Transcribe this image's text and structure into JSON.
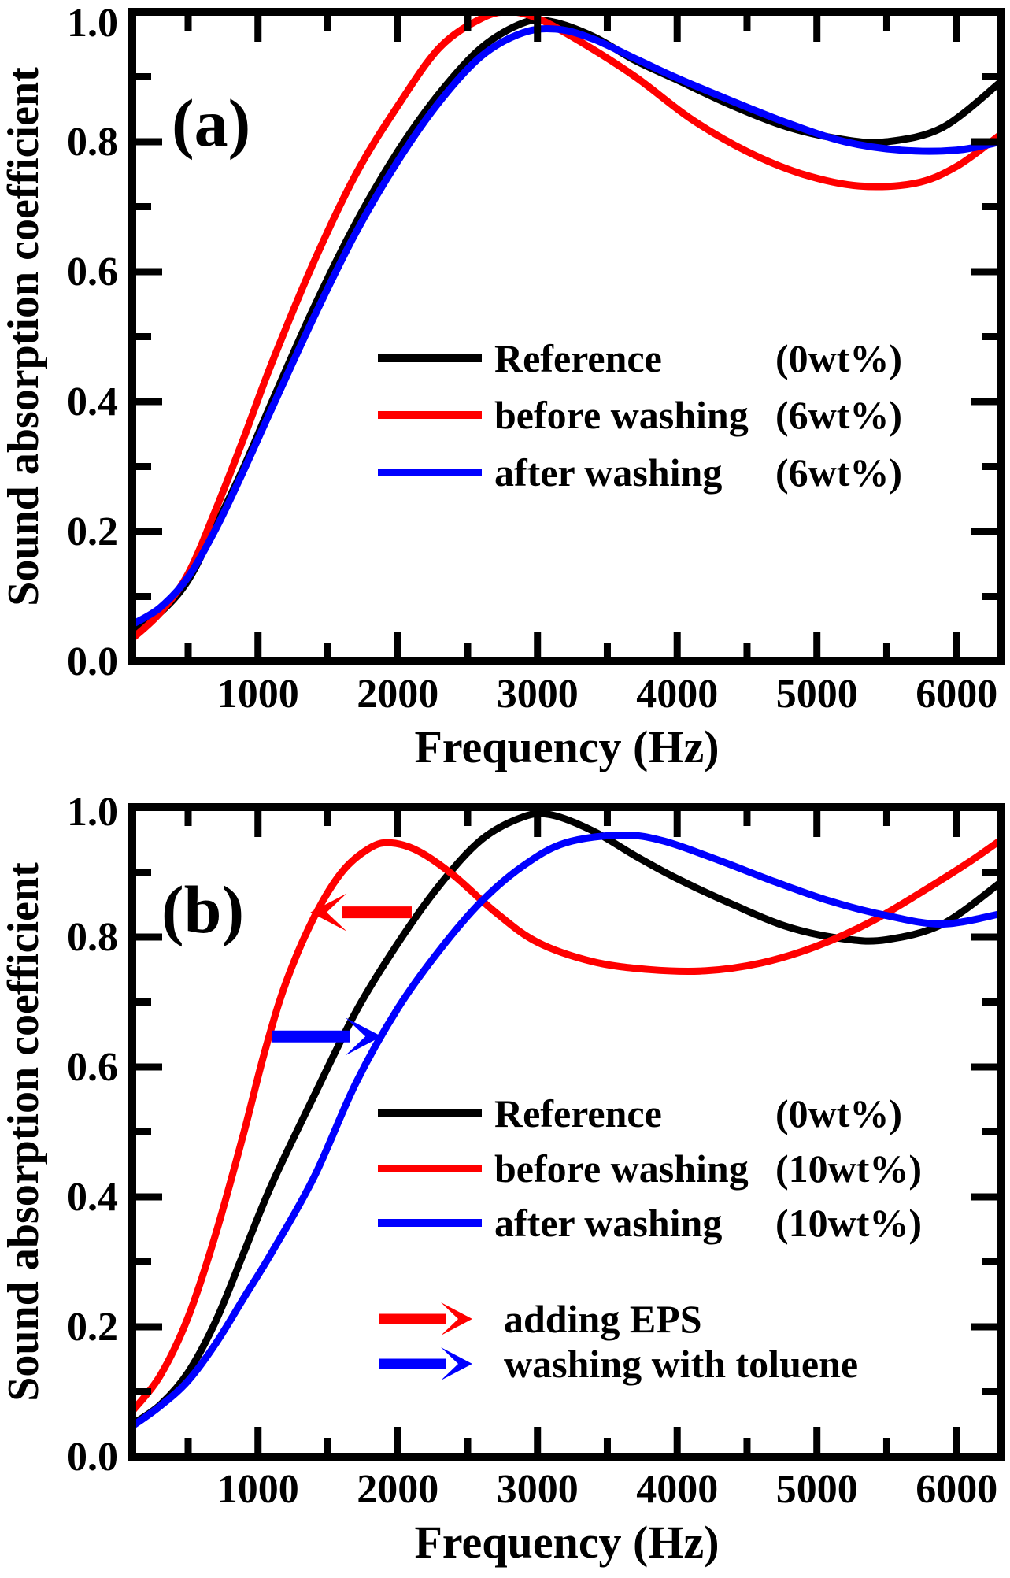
{
  "figure": {
    "background": "#ffffff",
    "x_axis_title": "Frequency (Hz)",
    "y_axis_title": "Sound absorption coefficient"
  },
  "chart_data": [
    {
      "type": "line",
      "panel_label": "(a)",
      "xlabel": "Frequency (Hz)",
      "ylabel": "Sound absorption coefficient",
      "xlim": [
        100,
        6320
      ],
      "ylim": [
        0.0,
        1.0
      ],
      "x_ticks": [
        1000,
        2000,
        3000,
        4000,
        5000,
        6000
      ],
      "x_minor_ticks": [
        500,
        1500,
        2500,
        3500,
        4500,
        5500
      ],
      "y_ticks": [
        {
          "v": 0.0,
          "label": "0.0"
        },
        {
          "v": 0.2,
          "label": "0.2"
        },
        {
          "v": 0.4,
          "label": "0.4"
        },
        {
          "v": 0.6,
          "label": "0.6"
        },
        {
          "v": 0.8,
          "label": "0.8"
        },
        {
          "v": 1.0,
          "label": "1.0"
        }
      ],
      "y_minor_ticks": [
        0.1,
        0.3,
        0.5,
        0.7,
        0.9
      ],
      "grid": false,
      "legend_position": "center-right",
      "series": [
        {
          "name": "Reference",
          "amount": "(0wt%)",
          "color": "#000000",
          "points": [
            [
              100,
              0.045
            ],
            [
              300,
              0.075
            ],
            [
              500,
              0.125
            ],
            [
              700,
              0.21
            ],
            [
              900,
              0.3
            ],
            [
              1100,
              0.4
            ],
            [
              1400,
              0.545
            ],
            [
              1700,
              0.675
            ],
            [
              2000,
              0.785
            ],
            [
              2300,
              0.875
            ],
            [
              2600,
              0.945
            ],
            [
              2900,
              0.983
            ],
            [
              3100,
              0.985
            ],
            [
              3400,
              0.962
            ],
            [
              3700,
              0.925
            ],
            [
              4000,
              0.895
            ],
            [
              4400,
              0.855
            ],
            [
              4800,
              0.822
            ],
            [
              5200,
              0.803
            ],
            [
              5500,
              0.8
            ],
            [
              5900,
              0.822
            ],
            [
              6320,
              0.893
            ]
          ]
        },
        {
          "name": "before washing",
          "amount": "(6wt%)",
          "color": "#ff0000",
          "points": [
            [
              100,
              0.035
            ],
            [
              300,
              0.075
            ],
            [
              500,
              0.135
            ],
            [
              700,
              0.235
            ],
            [
              900,
              0.345
            ],
            [
              1100,
              0.46
            ],
            [
              1400,
              0.615
            ],
            [
              1700,
              0.75
            ],
            [
              2000,
              0.855
            ],
            [
              2300,
              0.945
            ],
            [
              2600,
              0.99
            ],
            [
              2800,
              1.0
            ],
            [
              3000,
              0.99
            ],
            [
              3300,
              0.955
            ],
            [
              3700,
              0.9
            ],
            [
              4100,
              0.835
            ],
            [
              4500,
              0.785
            ],
            [
              4900,
              0.75
            ],
            [
              5300,
              0.732
            ],
            [
              5700,
              0.736
            ],
            [
              6000,
              0.762
            ],
            [
              6320,
              0.812
            ]
          ]
        },
        {
          "name": "after washing",
          "amount": "(6wt%)",
          "color": "#0000ff",
          "points": [
            [
              100,
              0.057
            ],
            [
              300,
              0.083
            ],
            [
              500,
              0.13
            ],
            [
              700,
              0.205
            ],
            [
              900,
              0.295
            ],
            [
              1100,
              0.39
            ],
            [
              1400,
              0.53
            ],
            [
              1700,
              0.66
            ],
            [
              2000,
              0.77
            ],
            [
              2300,
              0.862
            ],
            [
              2600,
              0.932
            ],
            [
              2900,
              0.968
            ],
            [
              3150,
              0.973
            ],
            [
              3400,
              0.958
            ],
            [
              3700,
              0.928
            ],
            [
              4000,
              0.898
            ],
            [
              4400,
              0.862
            ],
            [
              4800,
              0.828
            ],
            [
              5200,
              0.8
            ],
            [
              5600,
              0.787
            ],
            [
              6000,
              0.787
            ],
            [
              6320,
              0.8
            ]
          ]
        }
      ],
      "annotations": []
    },
    {
      "type": "line",
      "panel_label": "(b)",
      "xlabel": "Frequency (Hz)",
      "ylabel": "Sound absorption coefficient",
      "xlim": [
        100,
        6320
      ],
      "ylim": [
        0.0,
        1.0
      ],
      "x_ticks": [
        1000,
        2000,
        3000,
        4000,
        5000,
        6000
      ],
      "x_minor_ticks": [
        500,
        1500,
        2500,
        3500,
        4500,
        5500
      ],
      "y_ticks": [
        {
          "v": 0.0,
          "label": "0.0"
        },
        {
          "v": 0.2,
          "label": "0.2"
        },
        {
          "v": 0.4,
          "label": "0.4"
        },
        {
          "v": 0.6,
          "label": "0.6"
        },
        {
          "v": 0.8,
          "label": "0.8"
        },
        {
          "v": 1.0,
          "label": "1.0"
        }
      ],
      "y_minor_ticks": [
        0.1,
        0.3,
        0.5,
        0.7,
        0.9
      ],
      "grid": false,
      "legend_position": "center-right",
      "series": [
        {
          "name": "Reference",
          "amount": "(0wt%)",
          "color": "#000000",
          "points": [
            [
              100,
              0.05
            ],
            [
              300,
              0.08
            ],
            [
              500,
              0.13
            ],
            [
              700,
              0.21
            ],
            [
              900,
              0.315
            ],
            [
              1100,
              0.42
            ],
            [
              1400,
              0.555
            ],
            [
              1700,
              0.685
            ],
            [
              2000,
              0.79
            ],
            [
              2300,
              0.88
            ],
            [
              2600,
              0.95
            ],
            [
              2900,
              0.985
            ],
            [
              3100,
              0.988
            ],
            [
              3400,
              0.963
            ],
            [
              3700,
              0.925
            ],
            [
              4000,
              0.89
            ],
            [
              4400,
              0.85
            ],
            [
              4800,
              0.815
            ],
            [
              5200,
              0.797
            ],
            [
              5500,
              0.796
            ],
            [
              5900,
              0.82
            ],
            [
              6320,
              0.885
            ]
          ]
        },
        {
          "name": "before washing",
          "amount": "(10wt%)",
          "color": "#ff0000",
          "points": [
            [
              100,
              0.07
            ],
            [
              300,
              0.125
            ],
            [
              500,
              0.215
            ],
            [
              700,
              0.345
            ],
            [
              900,
              0.5
            ],
            [
              1050,
              0.625
            ],
            [
              1200,
              0.73
            ],
            [
              1400,
              0.83
            ],
            [
              1600,
              0.9
            ],
            [
              1800,
              0.937
            ],
            [
              1950,
              0.945
            ],
            [
              2150,
              0.932
            ],
            [
              2400,
              0.895
            ],
            [
              2700,
              0.838
            ],
            [
              3000,
              0.792
            ],
            [
              3400,
              0.762
            ],
            [
              3800,
              0.75
            ],
            [
              4200,
              0.748
            ],
            [
              4600,
              0.76
            ],
            [
              5000,
              0.786
            ],
            [
              5400,
              0.825
            ],
            [
              5800,
              0.876
            ],
            [
              6100,
              0.917
            ],
            [
              6320,
              0.95
            ]
          ]
        },
        {
          "name": "after washing",
          "amount": "(10wt%)",
          "color": "#0000ff",
          "points": [
            [
              100,
              0.047
            ],
            [
              300,
              0.078
            ],
            [
              500,
              0.117
            ],
            [
              700,
              0.175
            ],
            [
              900,
              0.245
            ],
            [
              1100,
              0.315
            ],
            [
              1400,
              0.43
            ],
            [
              1700,
              0.575
            ],
            [
              2000,
              0.69
            ],
            [
              2300,
              0.78
            ],
            [
              2600,
              0.855
            ],
            [
              2900,
              0.91
            ],
            [
              3200,
              0.945
            ],
            [
              3600,
              0.957
            ],
            [
              3900,
              0.948
            ],
            [
              4300,
              0.918
            ],
            [
              4700,
              0.885
            ],
            [
              5100,
              0.855
            ],
            [
              5500,
              0.833
            ],
            [
              5900,
              0.82
            ],
            [
              6320,
              0.836
            ]
          ]
        }
      ],
      "annotations": [
        {
          "kind": "arrow",
          "label": "adding EPS",
          "color": "#ff0000",
          "y": 0.838,
          "x_from": 2100,
          "x_to": 1420,
          "direction": "left"
        },
        {
          "kind": "arrow",
          "label": "washing with toluene",
          "color": "#0000ff",
          "y": 0.647,
          "x_from": 1100,
          "x_to": 1840,
          "direction": "right"
        }
      ]
    }
  ]
}
